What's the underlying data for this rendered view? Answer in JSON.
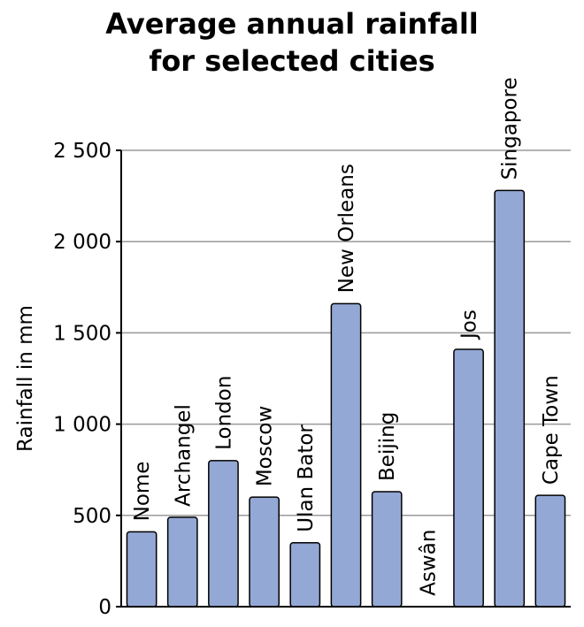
{
  "chart_data": {
    "type": "bar",
    "title_lines": [
      "Average annual rainfall",
      "for selected cities"
    ],
    "xlabel": "",
    "ylabel": "Rainfall in mm",
    "ylim": [
      0,
      2500
    ],
    "yticks": [
      0,
      500,
      1000,
      1500,
      2000,
      2500
    ],
    "ytick_labels": [
      "0",
      "500",
      "1 000",
      "1 500",
      "2 000",
      "2 500"
    ],
    "grid": true,
    "categories": [
      "Nome",
      "Archangel",
      "London",
      "Moscow",
      "Ulan Bator",
      "New Orleans",
      "Beijing",
      "Aswân",
      "Jos",
      "Singapore",
      "Cape Town"
    ],
    "values": [
      410,
      490,
      800,
      600,
      350,
      1660,
      630,
      1,
      1410,
      2280,
      610
    ],
    "bar_color": "#94a8d6"
  }
}
